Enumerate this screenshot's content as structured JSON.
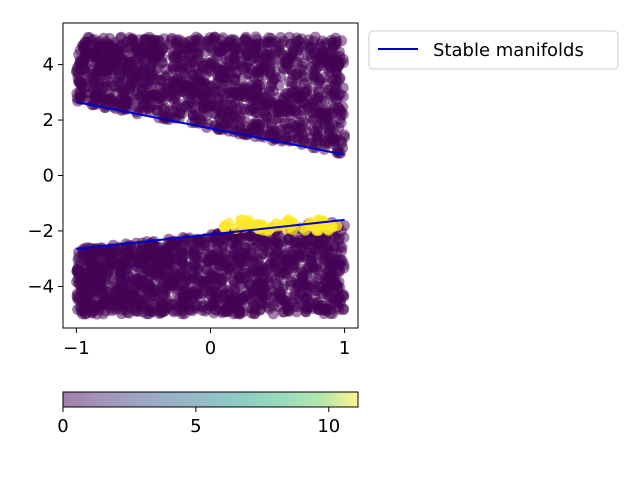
{
  "chart_data": [
    {
      "type": "scatter",
      "title": "",
      "xlabel": "",
      "ylabel": "",
      "xlim": [
        -1.1,
        1.1
      ],
      "ylim": [
        -5.5,
        5.5
      ],
      "xticks": [
        -1,
        0,
        1
      ],
      "xtick_labels": [
        "−1",
        "0",
        "1"
      ],
      "yticks": [
        -4,
        -2,
        0,
        2,
        4
      ],
      "ytick_labels": [
        "−4",
        "−2",
        "0",
        "2",
        "4"
      ],
      "grid": false,
      "legend_position": "outside-upper-right",
      "scatter_regions": [
        {
          "name": "upper",
          "x_range": [
            -1,
            1
          ],
          "y_top": 5,
          "y_bottom_at_x_min": 2.65,
          "y_bottom_at_x_max": 0.75,
          "color_value": 0
        },
        {
          "name": "lower",
          "x_range": [
            -1,
            1
          ],
          "y_bottom": -5,
          "y_top_at_x_min": -2.65,
          "y_top_at_x_max": -1.6,
          "color_value": 0
        },
        {
          "name": "near-manifold-highlight",
          "x_range": [
            0.1,
            0.95
          ],
          "y_range": [
            -2.0,
            -1.6
          ],
          "color_value": 11
        }
      ],
      "series": [
        {
          "name": "Stable manifolds",
          "type": "line",
          "color": "#0000cc",
          "segments": [
            {
              "x": [
                -1,
                1
              ],
              "y": [
                2.65,
                0.75
              ]
            },
            {
              "x": [
                -1,
                1
              ],
              "y": [
                -2.65,
                -1.6
              ]
            }
          ]
        }
      ],
      "colorbar": {
        "colormap": "viridis",
        "alpha": 0.5,
        "range": [
          0,
          11.1
        ],
        "ticks": [
          0,
          5,
          10
        ],
        "tick_labels": [
          "0",
          "5",
          "10"
        ],
        "orientation": "horizontal"
      },
      "colors": {
        "point_low": "#440154",
        "point_high": "#fde725",
        "manifold_line": "#0000cc"
      }
    }
  ]
}
